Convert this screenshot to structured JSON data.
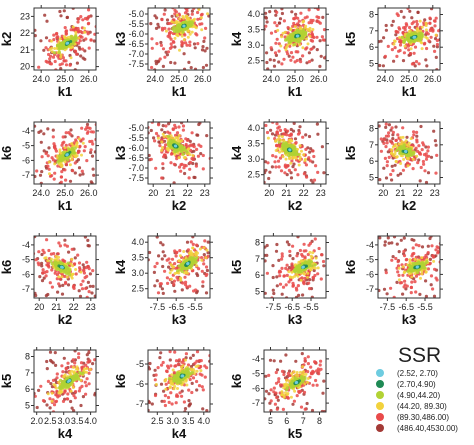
{
  "legend": {
    "title": "SSR",
    "entries": [
      {
        "label": "(2.52, 2.70)",
        "color": "#6ecce0"
      },
      {
        "label": "(2.70,4.90)",
        "color": "#1f8a55"
      },
      {
        "label": "(4.90,44.20)",
        "color": "#b2d234"
      },
      {
        "label": "(44.20, 89.30)",
        "color": "#f2d23c"
      },
      {
        "label": "(89.30,486.00)",
        "color": "#e94a4a"
      },
      {
        "label": "(486.40,4530.00)",
        "color": "#a33a36"
      }
    ]
  },
  "chart_data": [
    {
      "type": "scatter",
      "xlabel": "k1",
      "ylabel": "k2",
      "xticks": [
        "24.0",
        "25.0",
        "26.0"
      ],
      "yticks": [
        "20",
        "21",
        "22",
        "23"
      ],
      "xlim": [
        23.7,
        26.3
      ],
      "ylim": [
        19.8,
        23.5
      ],
      "xtick_values": [
        24,
        25,
        26
      ],
      "ytick_values": [
        20,
        21,
        22,
        23
      ],
      "center": [
        25.1,
        21.4
      ],
      "spread": [
        0.35,
        0.45
      ],
      "slope": 0.6
    },
    {
      "type": "scatter",
      "xlabel": "k1",
      "ylabel": "k3",
      "xticks": [
        "24.0",
        "25.0",
        "26.0"
      ],
      "yticks": [
        "-5.0",
        "-5.5",
        "-6.0",
        "-6.5",
        "-7.0",
        "-7.5"
      ],
      "xlim": [
        23.7,
        26.3
      ],
      "ylim": [
        -7.8,
        -4.7
      ],
      "xtick_values": [
        24,
        25,
        26
      ],
      "ytick_values": [
        -5,
        -5.5,
        -6,
        -6.5,
        -7,
        -7.5
      ],
      "center": [
        25.2,
        -5.6
      ],
      "spread": [
        0.35,
        0.45
      ],
      "slope": 0.3
    },
    {
      "type": "scatter",
      "xlabel": "k1",
      "ylabel": "k4",
      "xticks": [
        "24.0",
        "25.0",
        "26.0"
      ],
      "yticks": [
        "2.5",
        "3.0",
        "3.5",
        "4.0"
      ],
      "xlim": [
        23.7,
        26.3
      ],
      "ylim": [
        2.2,
        4.2
      ],
      "xtick_values": [
        24,
        25,
        26
      ],
      "ytick_values": [
        2.5,
        3,
        3.5,
        4
      ],
      "center": [
        25.1,
        3.3
      ],
      "spread": [
        0.35,
        0.3
      ],
      "slope": 0.2
    },
    {
      "type": "scatter",
      "xlabel": "k1",
      "ylabel": "k5",
      "xticks": [
        "24.0",
        "25.0",
        "26.0"
      ],
      "yticks": [
        "5",
        "6",
        "7",
        "8"
      ],
      "xlim": [
        23.7,
        26.3
      ],
      "ylim": [
        4.6,
        8.4
      ],
      "xtick_values": [
        24,
        25,
        26
      ],
      "ytick_values": [
        5,
        6,
        7,
        8
      ],
      "center": [
        25.2,
        6.6
      ],
      "spread": [
        0.35,
        0.5
      ],
      "slope": 0.2
    },
    {
      "type": "scatter",
      "xlabel": "k1",
      "ylabel": "k6",
      "xticks": [
        "24.0",
        "25.0",
        "26.0"
      ],
      "yticks": [
        "-4",
        "-5",
        "-6",
        "-7"
      ],
      "xlim": [
        23.7,
        26.3
      ],
      "ylim": [
        -7.6,
        -3.4
      ],
      "xtick_values": [
        24,
        25,
        26
      ],
      "ytick_values": [
        -4,
        -5,
        -6,
        -7
      ],
      "center": [
        25.1,
        -5.6
      ],
      "spread": [
        0.35,
        0.5
      ],
      "slope": 0.7
    },
    {
      "type": "scatter",
      "xlabel": "k2",
      "ylabel": "k3",
      "xticks": [
        "20",
        "21",
        "22",
        "23"
      ],
      "yticks": [
        "-5.0",
        "-5.5",
        "-6.0",
        "-6.5",
        "-7.0",
        "-7.5"
      ],
      "xlim": [
        19.7,
        23.3
      ],
      "ylim": [
        -7.8,
        -4.7
      ],
      "xtick_values": [
        20,
        21,
        22,
        23
      ],
      "ytick_values": [
        -5,
        -5.5,
        -6,
        -6.5,
        -7,
        -7.5
      ],
      "center": [
        21.3,
        -5.9
      ],
      "spread": [
        0.45,
        0.45
      ],
      "slope": -0.3
    },
    {
      "type": "scatter",
      "xlabel": "k2",
      "ylabel": "k4",
      "xticks": [
        "20",
        "21",
        "22",
        "23"
      ],
      "yticks": [
        "2.5",
        "3.0",
        "3.5",
        "4.0"
      ],
      "xlim": [
        19.7,
        23.3
      ],
      "ylim": [
        2.2,
        4.2
      ],
      "xtick_values": [
        20,
        21,
        22,
        23
      ],
      "ytick_values": [
        2.5,
        3,
        3.5,
        4
      ],
      "center": [
        21.2,
        3.3
      ],
      "spread": [
        0.45,
        0.3
      ],
      "slope": -0.4
    },
    {
      "type": "scatter",
      "xlabel": "k2",
      "ylabel": "k5",
      "xticks": [
        "20",
        "21",
        "22",
        "23"
      ],
      "yticks": [
        "5",
        "6",
        "7",
        "8"
      ],
      "xlim": [
        19.7,
        23.3
      ],
      "ylim": [
        4.6,
        8.4
      ],
      "xtick_values": [
        20,
        21,
        22,
        23
      ],
      "ytick_values": [
        5,
        6,
        7,
        8
      ],
      "center": [
        21.3,
        6.6
      ],
      "spread": [
        0.45,
        0.5
      ],
      "slope": -0.2
    },
    {
      "type": "scatter",
      "xlabel": "k2",
      "ylabel": "k6",
      "xticks": [
        "20",
        "21",
        "22",
        "23"
      ],
      "yticks": [
        "-4",
        "-5",
        "-6",
        "-7"
      ],
      "xlim": [
        19.7,
        23.3
      ],
      "ylim": [
        -7.6,
        -3.4
      ],
      "xtick_values": [
        20,
        21,
        22,
        23
      ],
      "ytick_values": [
        -4,
        -5,
        -6,
        -7
      ],
      "center": [
        21.3,
        -5.5
      ],
      "spread": [
        0.45,
        0.5
      ],
      "slope": -0.5
    },
    {
      "type": "scatter",
      "xlabel": "k3",
      "ylabel": "k4",
      "xticks": [
        "-7.5",
        "-6.5",
        "-5.5"
      ],
      "yticks": [
        "2.5",
        "3.0",
        "3.5",
        "4.0"
      ],
      "xlim": [
        -8.0,
        -4.7
      ],
      "ylim": [
        2.2,
        4.2
      ],
      "xtick_values": [
        -7.5,
        -6.5,
        -5.5
      ],
      "ytick_values": [
        2.5,
        3,
        3.5,
        4
      ],
      "center": [
        -5.9,
        3.3
      ],
      "spread": [
        0.45,
        0.3
      ],
      "slope": 0.5
    },
    {
      "type": "scatter",
      "xlabel": "k3",
      "ylabel": "k5",
      "xticks": [
        "-7.5",
        "-6.5",
        "-5.5"
      ],
      "yticks": [
        "5",
        "6",
        "7",
        "8"
      ],
      "xlim": [
        -8.0,
        -4.7
      ],
      "ylim": [
        4.6,
        8.4
      ],
      "xtick_values": [
        -7.5,
        -6.5,
        -5.5
      ],
      "ytick_values": [
        5,
        6,
        7,
        8
      ],
      "center": [
        -5.9,
        6.5
      ],
      "spread": [
        0.45,
        0.5
      ],
      "slope": 0.4
    },
    {
      "type": "scatter",
      "xlabel": "k3",
      "ylabel": "k6",
      "xticks": [
        "-7.5",
        "-6.5",
        "-5.5"
      ],
      "yticks": [
        "-4",
        "-5",
        "-6",
        "-7"
      ],
      "xlim": [
        -8.0,
        -4.7
      ],
      "ylim": [
        -7.6,
        -3.4
      ],
      "xtick_values": [
        -7.5,
        -6.5,
        -5.5
      ],
      "ytick_values": [
        -4,
        -5,
        -6,
        -7
      ],
      "center": [
        -5.9,
        -5.5
      ],
      "spread": [
        0.45,
        0.5
      ],
      "slope": 0.3
    },
    {
      "type": "scatter",
      "xlabel": "k4",
      "ylabel": "k5",
      "xticks": [
        "2.0",
        "2.5",
        "3.0",
        "3.5",
        "4.0"
      ],
      "yticks": [
        "5",
        "6",
        "7",
        "8"
      ],
      "xlim": [
        1.9,
        4.2
      ],
      "ylim": [
        4.6,
        8.4
      ],
      "xtick_values": [
        2,
        2.5,
        3,
        3.5,
        4
      ],
      "ytick_values": [
        5,
        6,
        7,
        8
      ],
      "center": [
        3.2,
        6.5
      ],
      "spread": [
        0.35,
        0.5
      ],
      "slope": 0.8
    },
    {
      "type": "scatter",
      "xlabel": "k4",
      "ylabel": "k6",
      "xticks": [
        "2.5",
        "3.0",
        "3.5",
        "4.0"
      ],
      "yticks": [
        "-5",
        "-6",
        "-7"
      ],
      "xlim": [
        2.2,
        4.2
      ],
      "ylim": [
        -7.4,
        -4.3
      ],
      "xtick_values": [
        2.5,
        3,
        3.5,
        4
      ],
      "ytick_values": [
        -5,
        -6,
        -7
      ],
      "center": [
        3.3,
        -5.6
      ],
      "spread": [
        0.3,
        0.45
      ],
      "slope": 0.4
    },
    {
      "type": "scatter",
      "xlabel": "k5",
      "ylabel": "k6",
      "xticks": [
        "5",
        "6",
        "7",
        "8"
      ],
      "yticks": [
        "-4",
        "-5",
        "-6",
        "-7"
      ],
      "xlim": [
        4.6,
        8.4
      ],
      "ylim": [
        -7.6,
        -3.4
      ],
      "xtick_values": [
        5,
        6,
        7,
        8
      ],
      "ytick_values": [
        -4,
        -5,
        -6,
        -7
      ],
      "center": [
        6.6,
        -5.6
      ],
      "spread": [
        0.5,
        0.5
      ],
      "slope": 0.6
    }
  ]
}
